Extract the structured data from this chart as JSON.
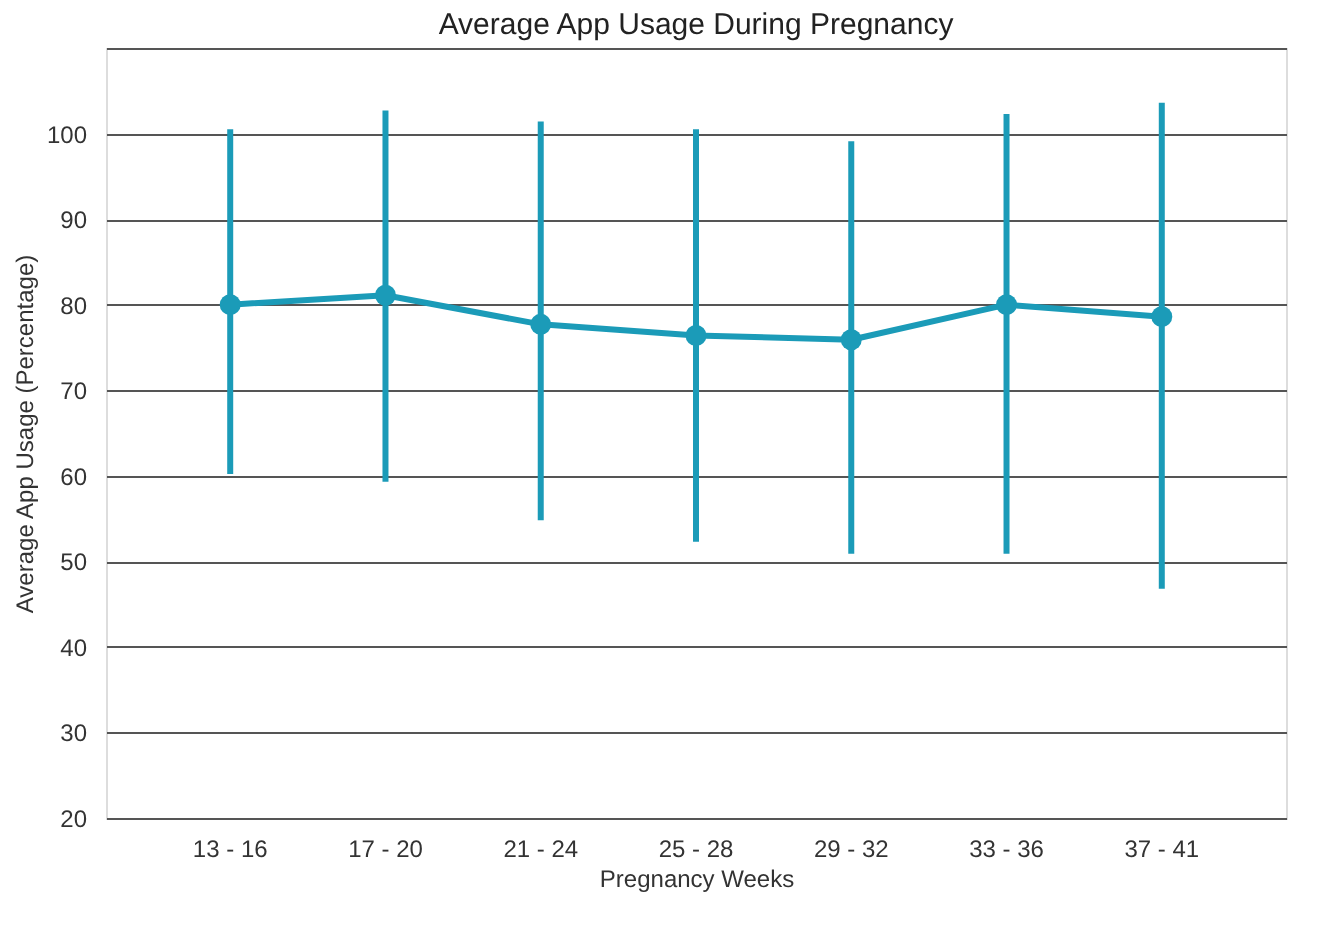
{
  "chart_data": {
    "type": "line",
    "title": "Average App Usage During Pregnancy",
    "xlabel": "Pregnancy Weeks",
    "ylabel": "Average App Usage (Percentage)",
    "categories": [
      "13 - 16",
      "17 - 20",
      "21 - 24",
      "25 - 28",
      "29 - 32",
      "33 - 36",
      "37 - 41"
    ],
    "series": [
      {
        "color": "#1b9bb8",
        "values": [
          80,
          81.1,
          77.7,
          76.4,
          75.9,
          80,
          78.6
        ],
        "errors": [
          [
            60.2,
            100.5
          ],
          [
            59.3,
            102.7
          ],
          [
            54.8,
            101.4
          ],
          [
            52.3,
            100.5
          ],
          [
            50.9,
            99.1
          ],
          [
            50.9,
            102.3
          ],
          [
            46.8,
            103.6
          ]
        ]
      }
    ],
    "ylim": [
      20,
      110
    ],
    "yticks": [
      20,
      30,
      40,
      50,
      60,
      70,
      80,
      90,
      100,
      {
        "value": 110,
        "label": null
      }
    ],
    "grid": "y",
    "marker": "circle",
    "line_style": "solid"
  }
}
